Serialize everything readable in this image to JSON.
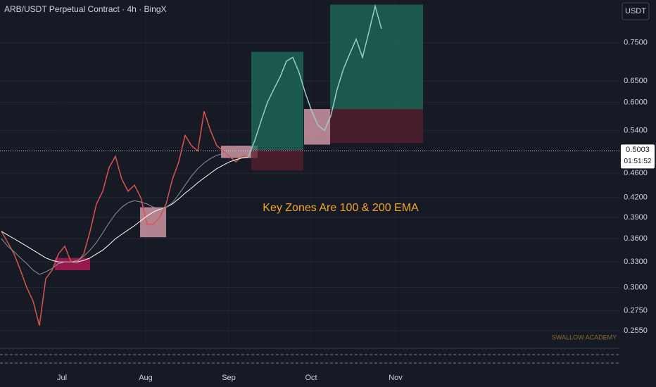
{
  "chart_data": {
    "type": "line",
    "title": "ARB/USDT Perpetual Contract · 4h · BingX",
    "currency_button": "USDT",
    "annotation": "Key Zones Are 100 & 200 EMA",
    "watermark": "SWALLOW ACADEMY",
    "current_price": 0.5003,
    "countdown": "01:51:52",
    "log_scale": true,
    "grid": true,
    "x_labels": [
      "Jul",
      "Aug",
      "Sep",
      "Oct",
      "Nov"
    ],
    "ylim": [
      0.242,
      0.88
    ],
    "yticks": [
      {
        "value": 0.75,
        "label": "0.7500"
      },
      {
        "value": 0.65,
        "label": "0.6500"
      },
      {
        "value": 0.6,
        "label": "0.6000"
      },
      {
        "value": 0.54,
        "label": "0.5400"
      },
      {
        "value": 0.46,
        "label": "0.4600"
      },
      {
        "value": 0.42,
        "label": "0.4200"
      },
      {
        "value": 0.39,
        "label": "0.3900"
      },
      {
        "value": 0.36,
        "label": "0.3600"
      },
      {
        "value": 0.33,
        "label": "0.3300"
      },
      {
        "value": 0.3,
        "label": "0.3000"
      },
      {
        "value": 0.275,
        "label": "0.2750"
      },
      {
        "value": 0.255,
        "label": "0.2550"
      }
    ],
    "series": [
      {
        "color": "#d9534f",
        "values": [
          0.37,
          0.355,
          0.34,
          0.32,
          0.3,
          0.285,
          0.26,
          0.31,
          0.32,
          0.34,
          0.35,
          0.33,
          0.33,
          0.34,
          0.37,
          0.41,
          0.43,
          0.47,
          0.49,
          0.45,
          0.43,
          0.44,
          0.42,
          0.38,
          0.38,
          0.39,
          0.41,
          0.45,
          0.48,
          0.53,
          0.51,
          0.5,
          0.58,
          0.54,
          0.51,
          0.5,
          0.49,
          0.48,
          0.49,
          0.49,
          null,
          null,
          null,
          null,
          null,
          null,
          null,
          null,
          null,
          null,
          null,
          null,
          null,
          null,
          null,
          null,
          null,
          null,
          null,
          null,
          null
        ]
      },
      {
        "color": "#9ccbc2",
        "values": [
          null,
          null,
          null,
          null,
          null,
          null,
          null,
          null,
          null,
          null,
          null,
          null,
          null,
          null,
          null,
          null,
          null,
          null,
          null,
          null,
          null,
          null,
          null,
          null,
          null,
          null,
          null,
          null,
          null,
          null,
          null,
          null,
          null,
          null,
          null,
          null,
          null,
          null,
          null,
          0.49,
          0.52,
          0.56,
          0.6,
          0.63,
          0.66,
          0.7,
          0.71,
          0.67,
          0.62,
          0.58,
          0.55,
          0.54,
          0.57,
          0.63,
          0.68,
          0.72,
          0.76,
          0.71,
          0.78,
          0.86,
          0.79
        ]
      },
      {
        "color": "#ffffff",
        "values": [
          0.37,
          0.365,
          0.36,
          0.355,
          0.35,
          0.345,
          0.34,
          0.335,
          0.332,
          0.33,
          0.33,
          0.33,
          0.33,
          0.332,
          0.335,
          0.34,
          0.345,
          0.352,
          0.36,
          0.366,
          0.372,
          0.378,
          0.385,
          0.392,
          0.398,
          0.402,
          0.405,
          0.41,
          0.418,
          0.427,
          0.435,
          0.444,
          0.452,
          0.46,
          0.468,
          0.474,
          0.48,
          0.484,
          0.487,
          0.489,
          null,
          null,
          null,
          null,
          null,
          null,
          null,
          null,
          null,
          null,
          null,
          null,
          null,
          null,
          null,
          null,
          null,
          null,
          null,
          null,
          null
        ]
      },
      {
        "color": "#8f9399",
        "values": [
          0.36,
          0.35,
          0.343,
          0.335,
          0.328,
          0.32,
          0.315,
          0.318,
          0.322,
          0.328,
          0.33,
          0.33,
          0.332,
          0.337,
          0.345,
          0.355,
          0.368,
          0.382,
          0.395,
          0.405,
          0.412,
          0.415,
          0.413,
          0.41,
          0.405,
          0.403,
          0.405,
          0.412,
          0.425,
          0.44,
          0.455,
          0.468,
          0.478,
          0.486,
          0.492,
          0.495,
          0.496,
          0.494,
          0.492,
          0.491,
          null,
          null,
          null,
          null,
          null,
          null,
          null,
          null,
          null,
          null,
          null,
          null,
          null,
          null,
          null,
          null,
          null,
          null,
          null,
          null,
          null
        ]
      }
    ],
    "zones": [
      {
        "low": 0.32,
        "high": 0.335,
        "color": "#c2185b"
      },
      {
        "low": 0.362,
        "high": 0.405,
        "color": "#e8a5b5"
      },
      {
        "low": 0.487,
        "high": 0.51,
        "color": "#e8a5b5"
      },
      {
        "low": 0.502,
        "high": 0.725,
        "color": "#1e6f5c"
      },
      {
        "low": 0.465,
        "high": 0.502,
        "color": "#5a1f2e"
      },
      {
        "low": 0.512,
        "high": 0.585,
        "color": "#e8a5b5"
      },
      {
        "low": 0.585,
        "high": 0.865,
        "color": "#1e6f5c"
      },
      {
        "low": 0.515,
        "high": 0.585,
        "color": "#5a1f2e"
      }
    ]
  }
}
